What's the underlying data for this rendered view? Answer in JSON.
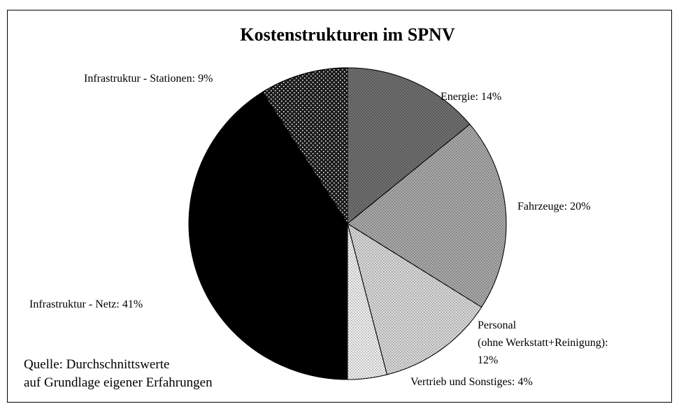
{
  "chart_data": {
    "type": "pie",
    "title": "Kostenstrukturen im SPNV",
    "labels": [
      [
        "Energie: 14%"
      ],
      [
        "Fahrzeuge: 20%"
      ],
      [
        "Personal",
        "(ohne Werkstatt+Reinigung):",
        "12%"
      ],
      [
        "Vertrieb und Sonstiges: 4%"
      ],
      [
        "Infrastruktur - Netz: 41%"
      ],
      [
        "Infrastruktur - Stationen: 9%"
      ]
    ],
    "values": [
      14,
      20,
      12,
      4,
      41,
      9
    ],
    "colors": [
      "#707070",
      "#a9a9a9",
      "#d9d9d9",
      "#efefef",
      "#000000",
      "#1c1c1c"
    ],
    "note": [
      "Quelle: Durchschnittswerte",
      "auf Grundlage eigener Erfahrungen"
    ]
  }
}
